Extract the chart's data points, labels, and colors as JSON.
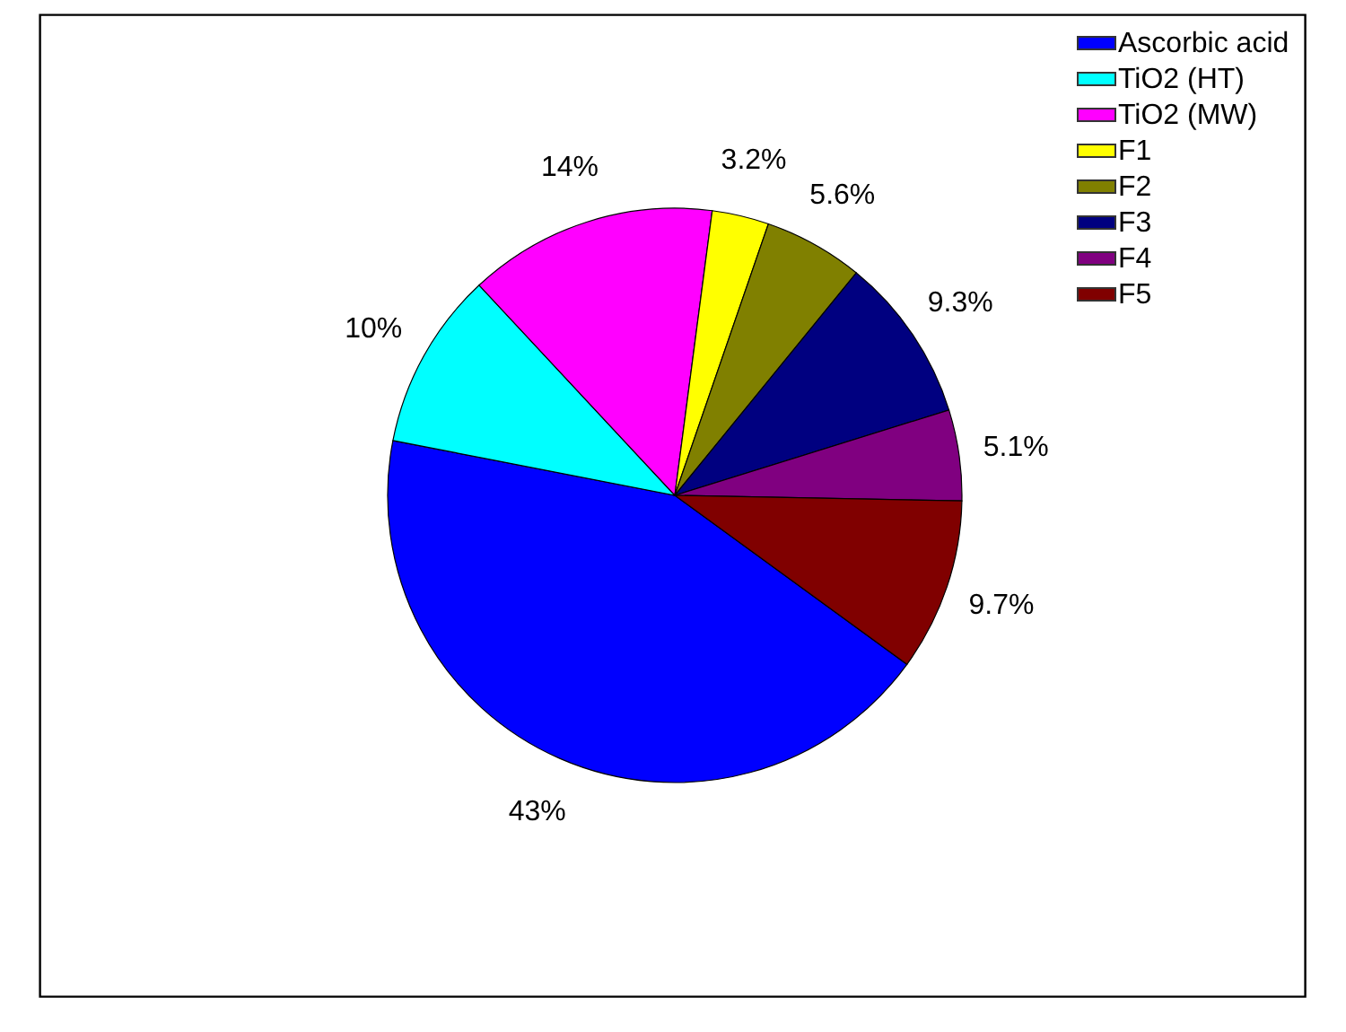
{
  "chart_data": {
    "type": "pie",
    "categories": [
      "Ascorbic acid",
      "TiO2 (HT)",
      "TiO2 (MW)",
      "F1",
      "F2",
      "F3",
      "F4",
      "F5"
    ],
    "values": [
      43,
      10,
      14,
      3.2,
      5.6,
      9.3,
      5.1,
      9.7
    ],
    "colors": [
      "#0000ff",
      "#00ffff",
      "#ff00ff",
      "#ffff00",
      "#808000",
      "#000080",
      "#800080",
      "#800000"
    ],
    "value_labels": [
      "43%",
      "10%",
      "14%",
      "3.2%",
      "5.6%",
      "9.3%",
      "5.1%",
      "9.7%"
    ],
    "legend": "top right"
  }
}
